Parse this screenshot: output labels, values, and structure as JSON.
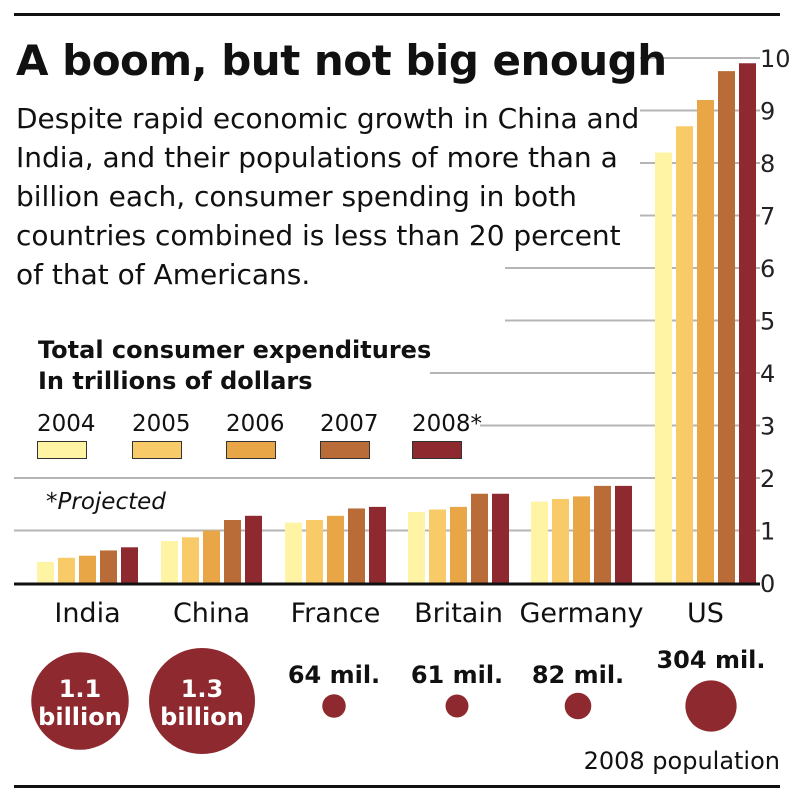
{
  "title": "A boom, but not big enough",
  "subtitle": "Despite rapid economic growth in China and India, and their populations of more than a billion each, consumer spending in both countries combined is less than 20 percent of that of Americans.",
  "legend": {
    "title_line1": "Total consumer expenditures",
    "title_line2": "In trillions of dollars",
    "items": [
      {
        "label": "2004",
        "color": "#fef4a3"
      },
      {
        "label": "2005",
        "color": "#f8cb68"
      },
      {
        "label": "2006",
        "color": "#e8a646"
      },
      {
        "label": "2007",
        "color": "#b96c38"
      },
      {
        "label": "2008*",
        "color": "#8e2a2f"
      }
    ]
  },
  "footnote": "*Projected",
  "chart_data": {
    "type": "bar",
    "categories": [
      "India",
      "China",
      "France",
      "Britain",
      "Germany",
      "US"
    ],
    "series": [
      {
        "name": "2004",
        "color": "#fef4a3",
        "values": [
          0.4,
          0.8,
          1.15,
          1.35,
          1.55,
          8.2
        ]
      },
      {
        "name": "2005",
        "color": "#f8cb68",
        "values": [
          0.48,
          0.87,
          1.2,
          1.4,
          1.6,
          8.7
        ]
      },
      {
        "name": "2006",
        "color": "#e8a646",
        "values": [
          0.52,
          1.0,
          1.28,
          1.45,
          1.65,
          9.2
        ]
      },
      {
        "name": "2007",
        "color": "#b96c38",
        "values": [
          0.62,
          1.2,
          1.42,
          1.7,
          1.85,
          9.75
        ]
      },
      {
        "name": "2008*",
        "color": "#8e2a2f",
        "values": [
          0.68,
          1.28,
          1.45,
          1.7,
          1.85,
          9.9
        ]
      }
    ],
    "ylim": [
      0,
      10
    ],
    "yticks": [
      "0",
      "1",
      "2",
      "3",
      "4",
      "5",
      "6",
      "7",
      "8",
      "9",
      "10"
    ],
    "grid": true,
    "title": "A boom, but not big enough",
    "ylabel": "In trillions of dollars"
  },
  "population": {
    "caption": "2008 population",
    "color": "#8e2a2f",
    "items": [
      {
        "country": "India",
        "value_millions": 1100,
        "line1": "1.1",
        "line2": "billion"
      },
      {
        "country": "China",
        "value_millions": 1300,
        "line1": "1.3",
        "line2": "billion"
      },
      {
        "country": "France",
        "value_millions": 64,
        "label": "64 mil."
      },
      {
        "country": "Britain",
        "value_millions": 61,
        "label": "61 mil."
      },
      {
        "country": "Germany",
        "value_millions": 82,
        "label": "82 mil."
      },
      {
        "country": "US",
        "value_millions": 304,
        "label": "304 mil."
      }
    ]
  }
}
